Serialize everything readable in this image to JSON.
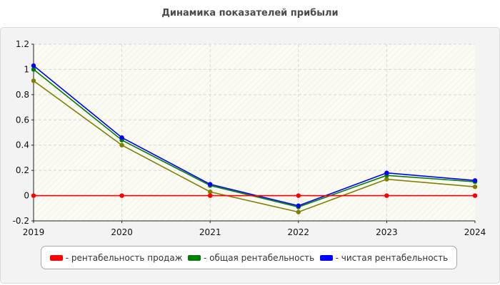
{
  "chart_data": {
    "type": "line",
    "title": "Динамика показателей прибыли",
    "xlabel": "",
    "ylabel": "",
    "categories": [
      "2019",
      "2020",
      "2021",
      "2022",
      "2023",
      "2024"
    ],
    "y_ticks": [
      "1.2",
      "1",
      "0.8",
      "0.6",
      "0.4",
      "0.2",
      "0",
      "-0.2"
    ],
    "ylim": [
      -0.2,
      1.2
    ],
    "grid": true,
    "legend_position": "bottom",
    "series": [
      {
        "name": "- рентабельность продаж",
        "color": "#ff0000",
        "values": [
          0,
          0,
          0,
          0,
          0,
          0
        ]
      },
      {
        "name": "- общая рентабельность",
        "color": "#008000",
        "values": [
          1.0,
          0.44,
          0.08,
          -0.09,
          0.16,
          0.11
        ]
      },
      {
        "name": "- чистая рентабельность",
        "color": "#0000ff",
        "values": [
          1.03,
          0.46,
          0.09,
          -0.08,
          0.18,
          0.12
        ]
      },
      {
        "name": "",
        "color": "#808000",
        "values": [
          0.91,
          0.4,
          0.03,
          -0.13,
          0.13,
          0.07
        ]
      }
    ]
  }
}
